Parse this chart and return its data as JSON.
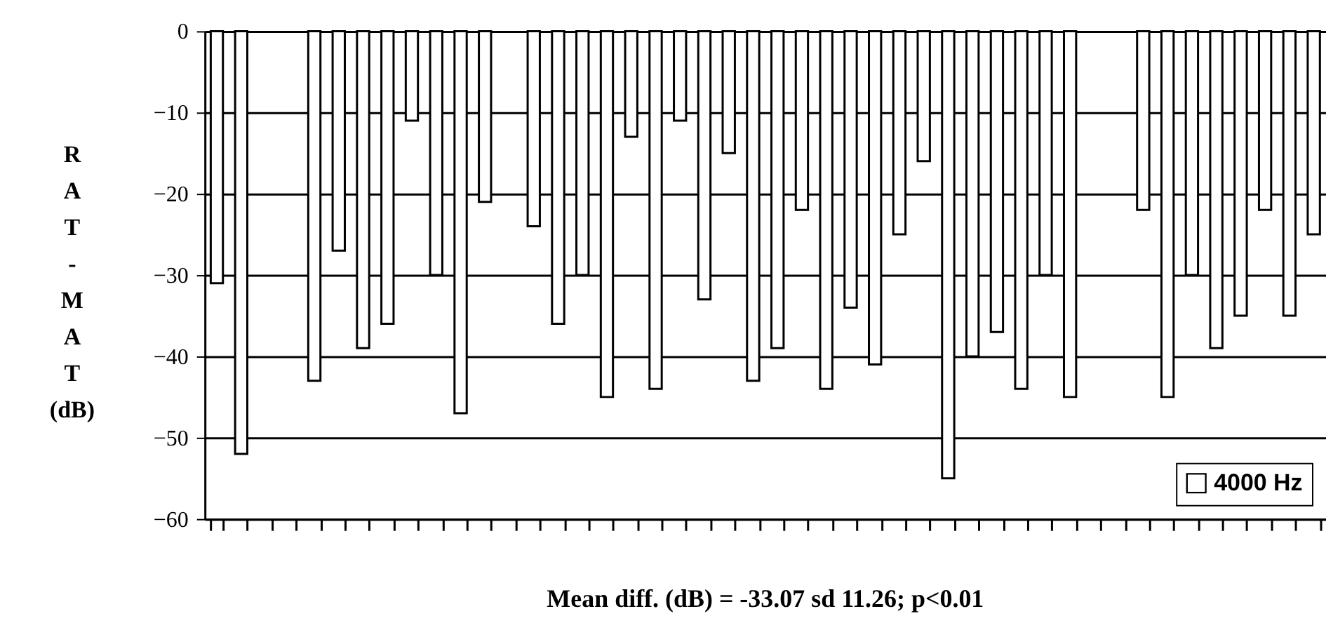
{
  "chart_data": {
    "type": "bar",
    "ylabel": "RAT-MAT (dB)",
    "categories": [
      null,
      null,
      null,
      null,
      null,
      null,
      null,
      null,
      null,
      null,
      null,
      null,
      null,
      null,
      null,
      null,
      null,
      null,
      null,
      null,
      null,
      null,
      null,
      null,
      null,
      null,
      null,
      null,
      null,
      null,
      null,
      null,
      null,
      null,
      null,
      null,
      null,
      null,
      null,
      null,
      null,
      null,
      null,
      null,
      null,
      null
    ],
    "series": [
      {
        "name": "4000 Hz",
        "color": "#ffffff",
        "values": [
          -31,
          -52,
          null,
          null,
          -43,
          -27,
          -39,
          -36,
          -11,
          -30,
          -47,
          -21,
          null,
          -24,
          -36,
          -30,
          -45,
          -13,
          -44,
          -11,
          -33,
          -15,
          -43,
          -39,
          -22,
          -44,
          -34,
          -41,
          -25,
          -16,
          -55,
          -40,
          -37,
          -44,
          -30,
          -45,
          null,
          null,
          -22,
          -45,
          -30,
          -39,
          -35,
          -22,
          -35,
          -25
        ]
      }
    ],
    "ylim": [
      -60,
      0
    ],
    "yticks": [
      0,
      -10,
      -20,
      -30,
      -40,
      -50,
      -60
    ],
    "grid": "y",
    "legend": "bottom right",
    "annotations": [
      "Mean diff. (dB) = -33.07 sd 11.26; p<0.01"
    ]
  }
}
